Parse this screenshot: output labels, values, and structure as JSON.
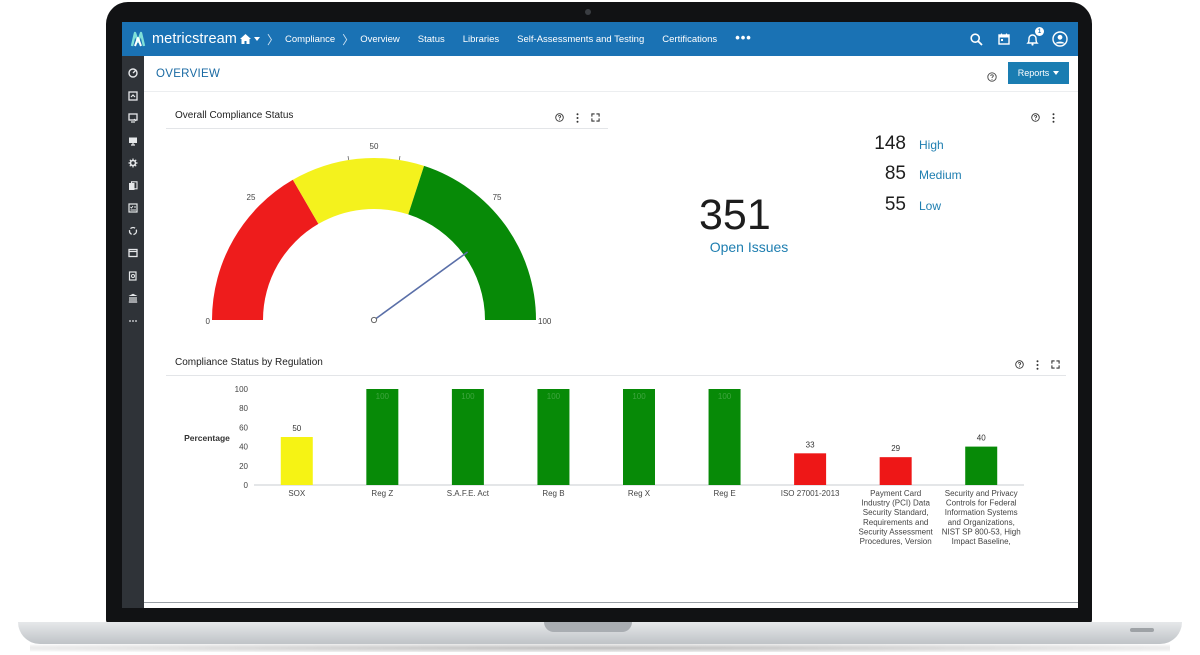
{
  "app": {
    "logo_text": "metricstream"
  },
  "nav": {
    "items": [
      "Compliance",
      "Overview",
      "Status",
      "Libraries",
      "Self-Assessments and Testing",
      "Certifications"
    ],
    "more": "•••",
    "notification_count": "1"
  },
  "page": {
    "title": "OVERVIEW",
    "reports_label": "Reports"
  },
  "gauge_panel": {
    "title": "Overall Compliance Status",
    "value": 80,
    "min": 0,
    "max": 100,
    "ticks": [
      "0",
      "25",
      "50",
      "75",
      "100"
    ],
    "bands": [
      {
        "from": 0,
        "to": 33.3,
        "color": "#ee1c1c"
      },
      {
        "from": 33.3,
        "to": 60,
        "color": "#f4f21d"
      },
      {
        "from": 60,
        "to": 100,
        "color": "#078a07"
      }
    ]
  },
  "issues": {
    "total": "351",
    "label": "Open Issues",
    "severities": [
      {
        "count": "148",
        "label": "High"
      },
      {
        "count": "85",
        "label": "Medium"
      },
      {
        "count": "55",
        "label": "Low"
      }
    ]
  },
  "bar_panel": {
    "title": "Compliance Status by Regulation"
  },
  "chart_data": {
    "type": "bar",
    "title": "Compliance Status by Regulation",
    "ylabel": "Percentage",
    "ylim": [
      0,
      100
    ],
    "yticks": [
      0,
      20,
      40,
      60,
      80,
      100
    ],
    "categories": [
      [
        "SOX"
      ],
      [
        "Reg Z"
      ],
      [
        "S.A.F.E. Act"
      ],
      [
        "Reg B"
      ],
      [
        "Reg X"
      ],
      [
        "Reg E"
      ],
      [
        "ISO 27001-2013"
      ],
      [
        "Payment Card",
        "Industry (PCI) Data",
        "Security Standard,",
        "Requirements and",
        "Security Assessment",
        "Procedures, Version"
      ],
      [
        "Security and Privacy",
        "Controls for Federal",
        "Information Systems",
        "and Organizations,",
        "NIST SP 800-53, High",
        "Impact Baseline,"
      ]
    ],
    "values": [
      50,
      100,
      100,
      100,
      100,
      100,
      33,
      29,
      40
    ],
    "colors": [
      "#f6f314",
      "#078a07",
      "#078a07",
      "#078a07",
      "#078a07",
      "#078a07",
      "#ee1717",
      "#ee1717",
      "#078a07"
    ]
  }
}
